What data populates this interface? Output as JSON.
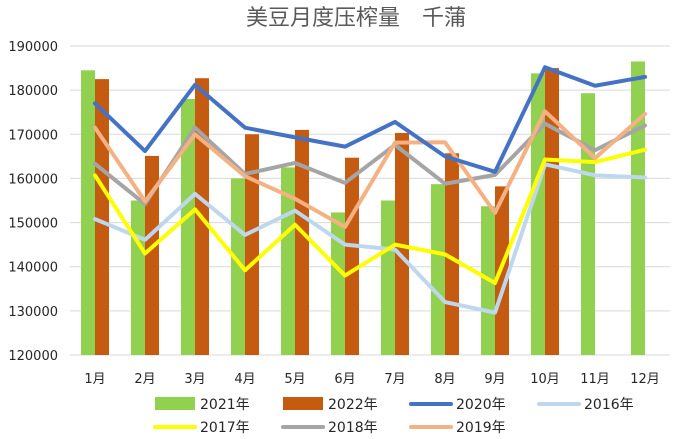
{
  "chart_data": {
    "type": "bar",
    "title": "美豆月度压榨量　千蒲",
    "xlabel": "",
    "ylabel": "",
    "ylim": [
      120000,
      190000
    ],
    "yticks": [
      120000,
      130000,
      140000,
      150000,
      160000,
      170000,
      180000,
      190000
    ],
    "categories": [
      "1月",
      "2月",
      "3月",
      "4月",
      "5月",
      "6月",
      "7月",
      "8月",
      "9月",
      "10月",
      "11月",
      "12月"
    ],
    "grid": true,
    "legend_position": "bottom",
    "bar_series": [
      {
        "name": "2021年",
        "color": "#92D050",
        "values": [
          184500,
          155000,
          178000,
          160000,
          162500,
          152300,
          155000,
          158700,
          153700,
          183800,
          179300,
          186500
        ]
      },
      {
        "name": "2022年",
        "color": "#C55A11",
        "values": [
          182500,
          165100,
          182700,
          170000,
          171000,
          164700,
          170300,
          165700,
          158200,
          185000,
          null,
          null
        ]
      }
    ],
    "line_series": [
      {
        "name": "2020年",
        "color": "#4472C4",
        "values": [
          177000,
          166200,
          181200,
          171500,
          169300,
          167200,
          172800,
          165000,
          161500,
          185200,
          181000,
          183000
        ]
      },
      {
        "name": "2016年",
        "color": "#BDD7EE",
        "values": [
          150800,
          146100,
          156500,
          147200,
          152700,
          145000,
          143900,
          132000,
          129600,
          163200,
          160700,
          160200
        ]
      },
      {
        "name": "2017年",
        "color": "#FFFF00",
        "values": [
          160700,
          143000,
          153000,
          139200,
          149500,
          138000,
          145000,
          142800,
          136300,
          164300,
          163700,
          166500
        ]
      },
      {
        "name": "2018年",
        "color": "#A5A5A5",
        "values": [
          163300,
          154200,
          171500,
          161000,
          163500,
          159000,
          167600,
          158800,
          160800,
          172400,
          166400,
          172000
        ]
      },
      {
        "name": "2019年",
        "color": "#F4B183",
        "values": [
          171500,
          154800,
          170000,
          160500,
          155400,
          149000,
          168100,
          168200,
          152200,
          175200,
          164600,
          174600
        ]
      }
    ],
    "legend": [
      {
        "name": "2021年",
        "kind": "bar",
        "color": "#92D050"
      },
      {
        "name": "2022年",
        "kind": "bar",
        "color": "#C55A11"
      },
      {
        "name": "2020年",
        "kind": "line",
        "color": "#4472C4"
      },
      {
        "name": "2016年",
        "kind": "line",
        "color": "#BDD7EE"
      },
      {
        "name": "2017年",
        "kind": "line",
        "color": "#FFFF00"
      },
      {
        "name": "2018年",
        "kind": "line",
        "color": "#A5A5A5"
      },
      {
        "name": "2019年",
        "kind": "line",
        "color": "#F4B183"
      }
    ]
  }
}
